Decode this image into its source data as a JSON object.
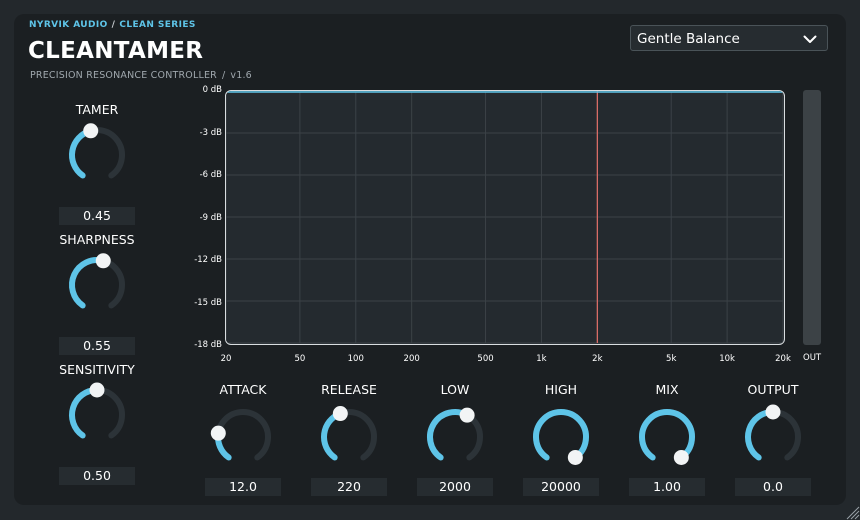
{
  "header": {
    "brand": "NYRVIK AUDIO",
    "brand_sep": "/",
    "series": "CLEAN SERIES",
    "title": "CLEANTAMER",
    "subtitle": "PRECISION RESONANCE CONTROLLER",
    "subtitle_sep": "/",
    "version": "v1.6"
  },
  "preset": {
    "selected": "Gentle Balance",
    "icon": "chevron-down-icon"
  },
  "left_knobs": [
    {
      "id": "tamer",
      "label": "TAMER",
      "value": "0.45",
      "fraction": 0.45
    },
    {
      "id": "sharpness",
      "label": "SHARPNESS",
      "value": "0.55",
      "fraction": 0.55
    },
    {
      "id": "sensitivity",
      "label": "SENSITIVITY",
      "value": "0.50",
      "fraction": 0.5
    }
  ],
  "bottom_knobs": [
    {
      "id": "attack",
      "label": "ATTACK",
      "value": "12.0",
      "fraction": 0.22
    },
    {
      "id": "release",
      "label": "RELEASE",
      "value": "220",
      "fraction": 0.43
    },
    {
      "id": "low",
      "label": "LOW",
      "value": "2000",
      "fraction": 0.6
    },
    {
      "id": "high",
      "label": "HIGH",
      "value": "20000",
      "fraction": 1.0
    },
    {
      "id": "mix",
      "label": "MIX",
      "value": "1.00",
      "fraction": 1.0
    },
    {
      "id": "output",
      "label": "OUTPUT",
      "value": "0.0",
      "fraction": 0.5
    }
  ],
  "graph": {
    "y_labels": [
      "0 dB",
      "-3 dB",
      "-6 dB",
      "-9 dB",
      "-12 dB",
      "-15 dB",
      "-18 dB"
    ],
    "x_labels": [
      "20",
      "50",
      "100",
      "200",
      "500",
      "1k",
      "2k",
      "5k",
      "10k",
      "20k"
    ],
    "x_values": [
      20,
      50,
      100,
      200,
      500,
      1000,
      2000,
      5000,
      10000,
      20000
    ],
    "marker_freq": 2000
  },
  "meter": {
    "label": "OUT"
  },
  "colors": {
    "accent": "#5ec4e8",
    "marker": "#e4706a",
    "knob_track": "#2c3338",
    "grid": "#3b4247"
  }
}
